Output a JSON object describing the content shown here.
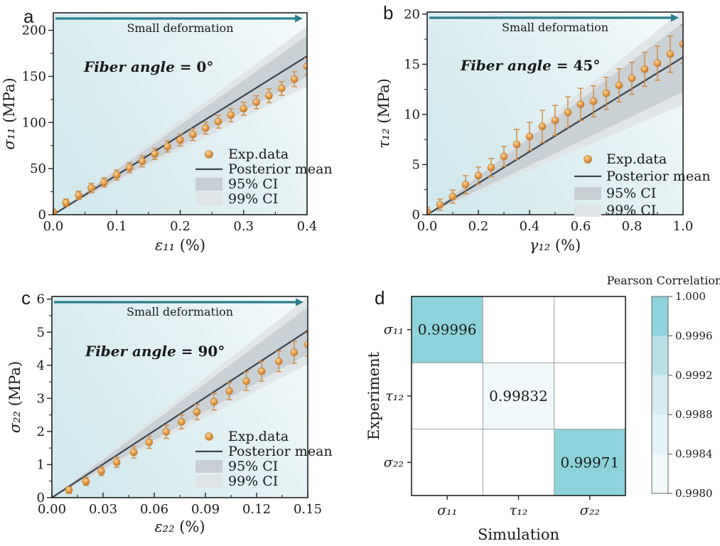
{
  "figure": {
    "colors": {
      "text": "#1a1a1a",
      "axis": "#222222",
      "arrow": "#2b7f8e",
      "plot_bg_start": "#d2e9ed",
      "plot_bg_mid": "#e3f1f3",
      "plot_bg_end": "#f4fafb",
      "point_fill_hi": "#fbd9a8",
      "point_fill_mid": "#eda24b",
      "point_fill_lo": "#c17026",
      "point_edge": "#b9762e",
      "error_bar": "#d08a3e",
      "posterior_line": "#39454e",
      "ci95": "#c8d0d4",
      "ci99": "#dee4e6",
      "heat_grid": "#9aa0a3",
      "cbar_edge": "#666666"
    }
  },
  "chart_data": [
    {
      "id": "a",
      "type": "scatter",
      "panel_label": "a",
      "arrow_label": "Small deformation",
      "annotation": {
        "bold_italic": "Fiber angle",
        "rest": " = 0°"
      },
      "xlabel": {
        "sym": "ε₁₁",
        "unit": "(%)"
      },
      "ylabel": {
        "sym": "σ₁₁",
        "unit": "(MPa)"
      },
      "xlim": [
        0,
        0.4
      ],
      "ylim": [
        0,
        219
      ],
      "xticks": {
        "values": [
          0,
          0.1,
          0.2,
          0.3,
          0.4
        ],
        "labels": [
          "0.0",
          "0.1",
          "0.2",
          "0.3",
          "0.4"
        ]
      },
      "yticks": {
        "values": [
          0,
          50,
          100,
          150,
          200
        ],
        "labels": [
          "0",
          "50",
          "100",
          "150",
          "200"
        ]
      },
      "minor_x": 0.05,
      "minor_y": 25,
      "legend": [
        "Exp.data",
        "Posterior mean",
        "95% CI",
        "99% CI"
      ],
      "exp": {
        "x": [
          0,
          0.02,
          0.04,
          0.06,
          0.08,
          0.1,
          0.12,
          0.14,
          0.16,
          0.18,
          0.2,
          0.22,
          0.24,
          0.26,
          0.28,
          0.3,
          0.32,
          0.34,
          0.36,
          0.38,
          0.4
        ],
        "y": [
          3,
          13,
          21,
          29,
          35,
          43,
          51,
          58,
          66,
          74,
          81,
          87,
          94,
          101,
          108,
          115,
          122,
          129,
          137,
          147,
          161
        ],
        "yerr": [
          2,
          4,
          4.5,
          5,
          5,
          5.5,
          5.5,
          6,
          6,
          6,
          6.5,
          6.5,
          6.5,
          7,
          7,
          7,
          7,
          7.5,
          7.5,
          8,
          9
        ]
      },
      "posterior_mean": {
        "x": [
          0,
          0.4
        ],
        "y": [
          0,
          172
        ]
      },
      "ci95_frac": 0.13,
      "ci99_frac": 0.19
    },
    {
      "id": "b",
      "type": "scatter",
      "panel_label": "b",
      "arrow_label": "Small deformation",
      "annotation": {
        "bold_italic": "Fiber angle",
        "rest": " = 45°"
      },
      "xlabel": {
        "sym": "γ₁₂",
        "unit": "(%)"
      },
      "ylabel": {
        "sym": "τ₁₂",
        "unit": "(MPa)"
      },
      "xlim": [
        0,
        1.0
      ],
      "ylim": [
        0,
        20.2
      ],
      "xticks": {
        "values": [
          0,
          0.2,
          0.4,
          0.6,
          0.8,
          1.0
        ],
        "labels": [
          "0.0",
          "0.2",
          "0.4",
          "0.6",
          "0.8",
          "1.0"
        ]
      },
      "yticks": {
        "values": [
          0,
          5,
          10,
          15,
          20
        ],
        "labels": [
          "0",
          "5",
          "10",
          "15",
          "20"
        ]
      },
      "minor_x": 0.1,
      "minor_y": 2.5,
      "legend": [
        "Exp.data",
        "Posterior mean",
        "95% CI",
        "99% CI"
      ],
      "exp": {
        "x": [
          0,
          0.05,
          0.1,
          0.15,
          0.2,
          0.25,
          0.3,
          0.35,
          0.4,
          0.45,
          0.5,
          0.55,
          0.6,
          0.65,
          0.7,
          0.75,
          0.8,
          0.85,
          0.9,
          0.95,
          1.0
        ],
        "y": [
          0.3,
          1.0,
          1.8,
          3.0,
          3.9,
          4.7,
          5.8,
          7.0,
          7.8,
          8.8,
          9.4,
          10.2,
          11.0,
          11.3,
          12.1,
          12.9,
          13.6,
          14.5,
          15.1,
          16.0,
          17.0
        ],
        "yerr": [
          0.45,
          0.55,
          0.65,
          0.9,
          0.85,
          0.9,
          1.0,
          1.5,
          1.4,
          1.6,
          1.5,
          1.55,
          1.6,
          1.55,
          1.6,
          1.65,
          1.6,
          1.7,
          1.7,
          1.8,
          1.9
        ]
      },
      "posterior_mean": {
        "x": [
          0,
          1.0
        ],
        "y": [
          0,
          15.7
        ]
      },
      "ci95_frac": 0.22,
      "ci99_frac": 0.3
    },
    {
      "id": "c",
      "type": "scatter",
      "panel_label": "c",
      "arrow_label": "Small deformation",
      "annotation": {
        "bold_italic": "Fiber angle",
        "rest": " = 90°"
      },
      "xlabel": {
        "sym": "ε₂₂",
        "unit": "(%)"
      },
      "ylabel": {
        "sym": "σ₂₂",
        "unit": "(MPa)"
      },
      "xlim": [
        0,
        0.15
      ],
      "ylim": [
        0,
        6.08
      ],
      "xticks": {
        "values": [
          0,
          0.03,
          0.06,
          0.09,
          0.12,
          0.15
        ],
        "labels": [
          "0.00",
          "0.03",
          "0.06",
          "0.09",
          "0.12",
          "0.15"
        ]
      },
      "yticks": {
        "values": [
          0,
          1,
          2,
          3,
          4,
          5,
          6
        ],
        "labels": [
          "0",
          "1",
          "2",
          "3",
          "4",
          "5",
          "6"
        ]
      },
      "minor_x": 0.015,
      "minor_y": 0.5,
      "legend": [
        "Exp.data",
        "Posterior mean",
        "95% CI",
        "99% CI"
      ],
      "exp": {
        "x": [
          0.01,
          0.02,
          0.029,
          0.038,
          0.048,
          0.057,
          0.067,
          0.076,
          0.085,
          0.095,
          0.104,
          0.114,
          0.123,
          0.133,
          0.142,
          0.15
        ],
        "y": [
          0.23,
          0.49,
          0.8,
          1.07,
          1.37,
          1.67,
          1.99,
          2.29,
          2.59,
          2.9,
          3.22,
          3.52,
          3.82,
          4.12,
          4.39,
          4.63
        ],
        "yerr": [
          0.1,
          0.12,
          0.13,
          0.15,
          0.17,
          0.18,
          0.2,
          0.21,
          0.23,
          0.25,
          0.26,
          0.28,
          0.3,
          0.31,
          0.33,
          0.35
        ]
      },
      "posterior_mean": {
        "x": [
          0,
          0.15
        ],
        "y": [
          0,
          5.05
        ]
      },
      "ci95_frac": 0.14,
      "ci99_frac": 0.2
    },
    {
      "id": "d",
      "type": "heatmap",
      "panel_label": "d",
      "xlabel": "Simulation",
      "ylabel": "Experiment",
      "x_categories": [
        "σ₁₁",
        "τ₁₂",
        "σ₂₂"
      ],
      "y_categories": [
        "σ₁₁",
        "τ₁₂",
        "σ₂₂"
      ],
      "cells": [
        {
          "row": 0,
          "col": 0,
          "value": "0.99996"
        },
        {
          "row": 1,
          "col": 1,
          "value": "0.99832"
        },
        {
          "row": 2,
          "col": 2,
          "value": "0.99971"
        }
      ],
      "colorbar": {
        "title": "Pearson Correlation",
        "tick_labels": [
          "1.000",
          "0.9996",
          "0.9992",
          "0.9988",
          "0.9984",
          "0.9980"
        ],
        "segment_colors": [
          "#8ed2db",
          "#b9e1e8",
          "#d5edf0",
          "#e4f3f5",
          "#f1f8f9"
        ]
      }
    }
  ]
}
